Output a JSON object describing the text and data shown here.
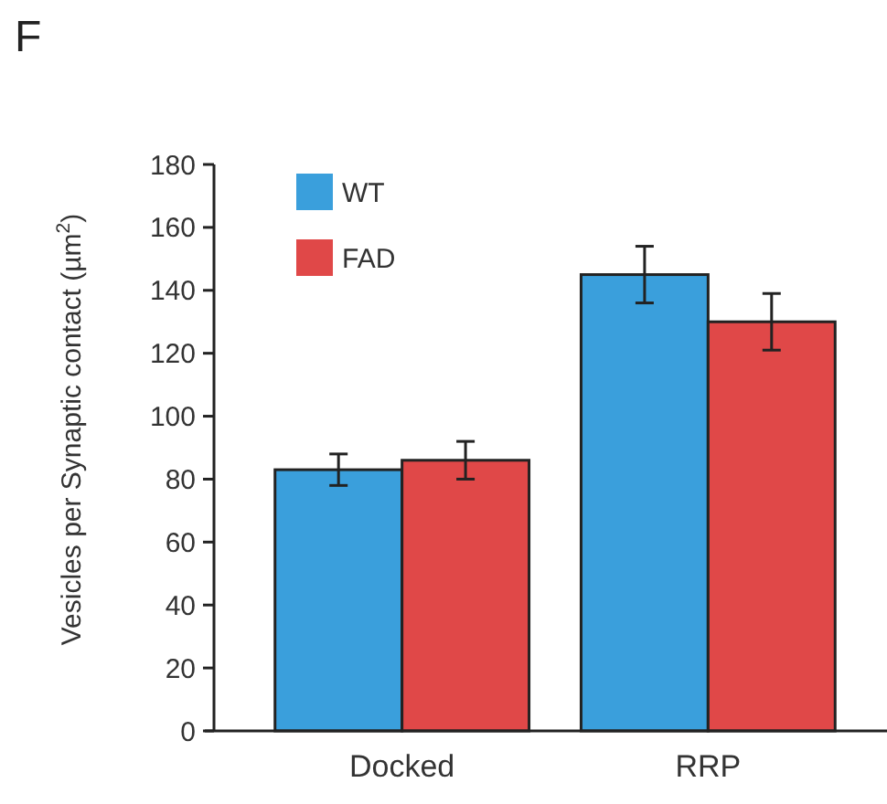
{
  "chart_data": {
    "type": "bar",
    "title": "F",
    "ylabel": "Vesicles per Synaptic contact (µm$^{2}$)",
    "categories": [
      "Docked",
      "RRP"
    ],
    "series": [
      {
        "name": "WT",
        "color": "#3a9fdc",
        "values": [
          83,
          145
        ],
        "errors": [
          5,
          9
        ]
      },
      {
        "name": "FAD",
        "color": "#e04848",
        "values": [
          86,
          130
        ],
        "errors": [
          6,
          9
        ]
      }
    ],
    "ylim": [
      0,
      180
    ],
    "yticks": [
      0,
      20,
      40,
      60,
      80,
      100,
      120,
      140,
      160,
      180
    ],
    "grid": false,
    "legend": "top left"
  }
}
